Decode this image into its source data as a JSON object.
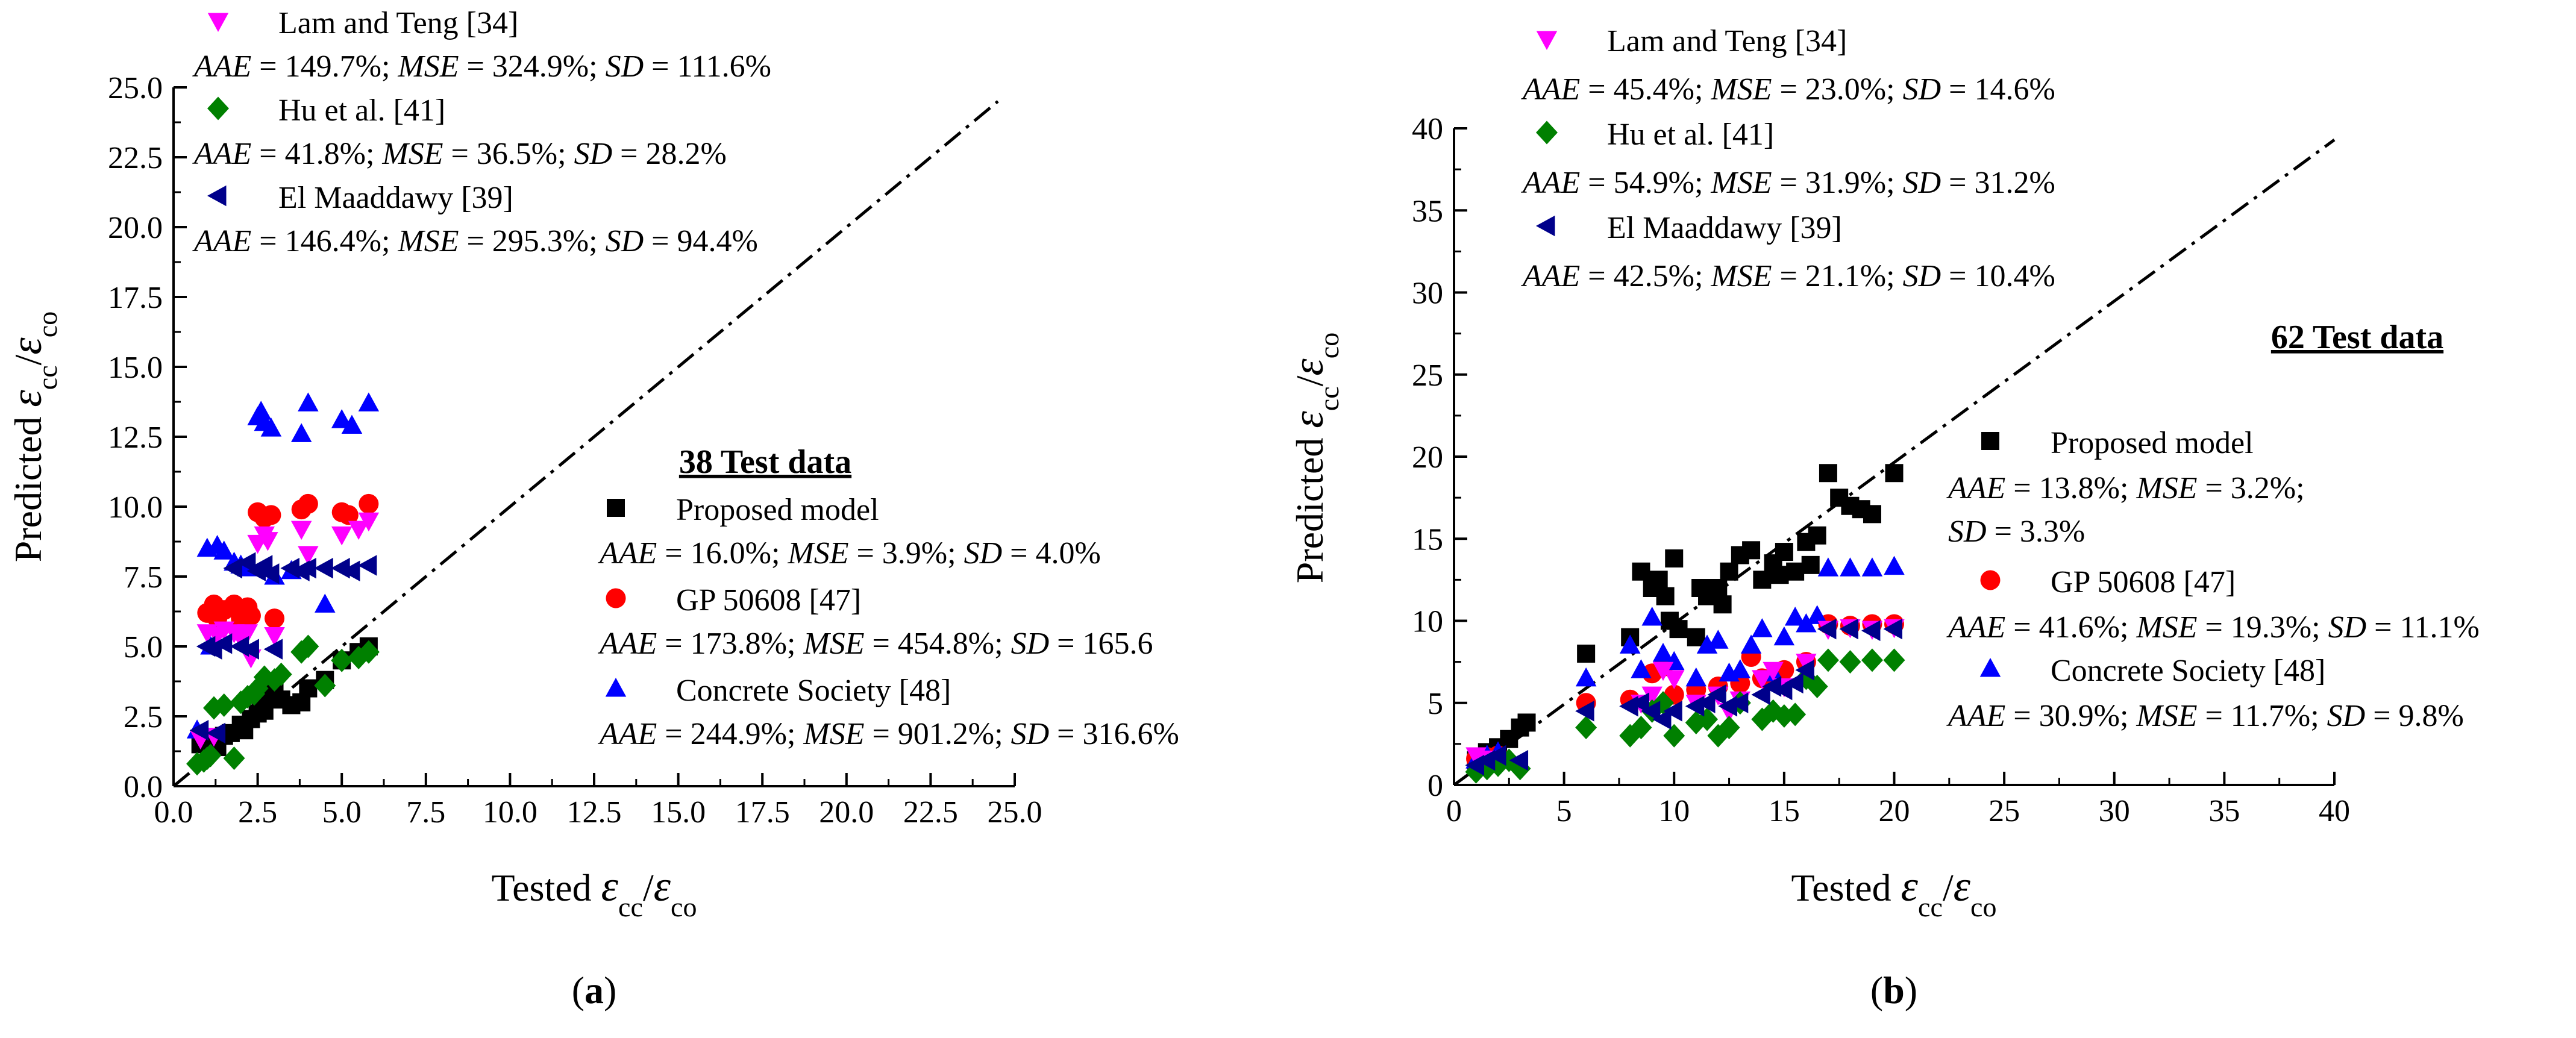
{
  "chart_data": [
    {
      "type": "scatter",
      "panel": "a",
      "caption_letter": "a",
      "xlabel": "Tested εcc/εco",
      "ylabel": "Predicted εcc/εco",
      "xlim": [
        0,
        25
      ],
      "ylim": [
        0,
        25
      ],
      "xticks": [
        "0.0",
        "2.5",
        "5.0",
        "7.5",
        "10.0",
        "12.5",
        "15.0",
        "17.5",
        "20.0",
        "22.5",
        "25.0"
      ],
      "yticks": [
        "0.0",
        "2.5",
        "5.0",
        "7.5",
        "10.0",
        "12.5",
        "15.0",
        "17.5",
        "20.0",
        "22.5",
        "25.0"
      ],
      "reference_line": "y = x",
      "test_count_label": "38 Test data",
      "series": [
        {
          "name": "Proposed model",
          "marker": "square",
          "color": "#000000",
          "stats": {
            "aae": "16.0%",
            "mse": "3.9%",
            "sd": "4.0%"
          },
          "x": [
            0.8,
            1.0,
            1.2,
            1.5,
            1.7,
            2.0,
            2.3,
            2.5,
            2.6,
            2.8,
            3.0,
            3.2,
            3.5,
            3.8,
            4.0,
            4.5,
            5.0,
            5.5,
            5.8,
            1.3,
            2.1,
            2.7
          ],
          "y": [
            1.5,
            1.7,
            1.6,
            1.8,
            1.9,
            2.2,
            2.4,
            2.6,
            3.0,
            3.3,
            3.6,
            3.1,
            2.9,
            3.0,
            3.5,
            3.8,
            4.5,
            4.8,
            5.0,
            1.4,
            2.0,
            2.7
          ]
        },
        {
          "name": "GP 50608 [47]",
          "marker": "circle",
          "color": "#ff0000",
          "stats": {
            "aae": "173.8%",
            "mse": "454.8%",
            "sd": "165.6"
          },
          "x": [
            1.0,
            1.2,
            1.5,
            1.8,
            2.0,
            2.2,
            2.5,
            2.7,
            2.9,
            3.0,
            3.8,
            4.0,
            5.0,
            5.2,
            5.8,
            1.3,
            2.3
          ],
          "y": [
            6.2,
            6.5,
            6.3,
            6.5,
            6.0,
            6.4,
            9.8,
            9.6,
            9.7,
            6.0,
            9.9,
            10.1,
            9.8,
            9.7,
            10.1,
            6.0,
            6.1
          ]
        },
        {
          "name": "Concrete Society [48]",
          "marker": "triangle-up",
          "color": "#0000ff",
          "stats": {
            "aae": "244.9%",
            "mse": "901.2%",
            "sd": "316.6%"
          },
          "x": [
            0.7,
            1.0,
            1.3,
            1.5,
            1.8,
            2.0,
            2.2,
            2.5,
            2.7,
            2.9,
            3.0,
            3.5,
            3.8,
            4.0,
            4.5,
            5.0,
            5.3,
            5.8,
            1.1,
            2.6
          ],
          "y": [
            2.0,
            8.5,
            8.6,
            8.4,
            8.0,
            7.9,
            7.8,
            13.2,
            13.0,
            12.8,
            7.5,
            7.7,
            12.6,
            13.7,
            6.5,
            13.1,
            12.9,
            13.7,
            5.0,
            13.4
          ]
        },
        {
          "name": "Lam and Teng [34]",
          "marker": "triangle-down",
          "color": "#ff00ff",
          "stats": {
            "aae": "149.7%",
            "mse": "324.9%",
            "sd": "111.6%"
          },
          "x": [
            0.8,
            1.0,
            1.3,
            1.5,
            1.8,
            2.0,
            2.3,
            2.5,
            2.7,
            2.8,
            3.0,
            3.8,
            4.0,
            5.0,
            5.5,
            5.8,
            1.2,
            2.2
          ],
          "y": [
            1.7,
            5.5,
            5.4,
            5.6,
            5.5,
            5.3,
            4.6,
            8.7,
            9.0,
            8.8,
            5.4,
            9.2,
            8.3,
            9.0,
            9.2,
            9.5,
            1.8,
            5.5
          ]
        },
        {
          "name": "Hu et al. [41]",
          "marker": "diamond",
          "color": "#008000",
          "stats": {
            "aae": "41.8%",
            "mse": "36.5%",
            "sd": "28.2%"
          },
          "x": [
            0.7,
            0.9,
            1.0,
            1.2,
            1.5,
            1.8,
            2.0,
            2.2,
            2.5,
            2.7,
            3.0,
            3.2,
            3.8,
            4.0,
            4.5,
            5.0,
            5.5,
            5.8,
            1.1,
            2.4
          ],
          "y": [
            0.8,
            0.9,
            1.0,
            2.8,
            2.9,
            1.0,
            3.0,
            3.2,
            3.5,
            3.9,
            3.8,
            4.0,
            4.8,
            5.0,
            3.6,
            4.5,
            4.6,
            4.8,
            1.1,
            3.3
          ]
        },
        {
          "name": "El Maaddawy [39]",
          "marker": "triangle-left",
          "color": "#00008b",
          "stats": {
            "aae": "146.4%",
            "mse": "295.3%",
            "sd": "94.4%"
          },
          "x": [
            0.8,
            1.0,
            1.2,
            1.5,
            1.8,
            2.0,
            2.3,
            2.5,
            2.7,
            2.9,
            3.0,
            3.5,
            3.8,
            4.0,
            4.5,
            5.0,
            5.3,
            5.8,
            1.3,
            2.2
          ],
          "y": [
            2.0,
            5.0,
            4.9,
            5.1,
            7.8,
            5.0,
            4.9,
            7.7,
            7.9,
            7.6,
            4.9,
            7.8,
            7.7,
            7.8,
            7.8,
            7.8,
            7.7,
            7.9,
            1.9,
            8.0
          ]
        }
      ]
    },
    {
      "type": "scatter",
      "panel": "b",
      "caption_letter": "b",
      "xlabel": "Tested εcc/εco",
      "ylabel": "Predicted εcc/εco",
      "xlim": [
        0,
        40
      ],
      "ylim": [
        0,
        40
      ],
      "xticks": [
        "0",
        "5",
        "10",
        "15",
        "20",
        "25",
        "30",
        "35",
        "40"
      ],
      "yticks": [
        "0",
        "5",
        "10",
        "15",
        "20",
        "25",
        "30",
        "35",
        "40"
      ],
      "reference_line": "y = x",
      "test_count_label": "62 Test data",
      "series": [
        {
          "name": "Proposed model",
          "marker": "square",
          "color": "#000000",
          "stats": {
            "aae": "13.8%",
            "mse": "3.2%",
            "sd": "3.3%"
          },
          "x": [
            1.0,
            1.5,
            2.0,
            2.5,
            3.0,
            3.3,
            6.0,
            8.0,
            8.5,
            9.0,
            9.3,
            9.6,
            10.0,
            10.2,
            11.0,
            11.5,
            12.0,
            12.5,
            13.0,
            13.5,
            14.0,
            14.5,
            15.0,
            15.5,
            16.0,
            16.5,
            17.0,
            17.5,
            18.0,
            18.5,
            19.0,
            20.0,
            9.8,
            12.2,
            14.8,
            16.2,
            11.2
          ],
          "y": [
            1.5,
            2.0,
            2.3,
            2.8,
            3.5,
            3.8,
            8.0,
            9.0,
            13.0,
            12.0,
            12.5,
            11.5,
            13.8,
            9.5,
            9.0,
            11.5,
            12.0,
            13.0,
            14.0,
            14.3,
            12.5,
            13.5,
            14.2,
            13.0,
            14.8,
            15.2,
            19.0,
            17.5,
            17.0,
            16.8,
            16.5,
            19.0,
            10.0,
            11.0,
            12.8,
            13.4,
            12.0
          ]
        },
        {
          "name": "GP 50608 [47]",
          "marker": "circle",
          "color": "#ff0000",
          "stats": {
            "aae": "41.6%",
            "mse": "19.3%",
            "sd": "11.1%"
          },
          "x": [
            1.0,
            1.5,
            2.0,
            6.0,
            8.0,
            9.0,
            9.5,
            10.0,
            11.0,
            12.0,
            13.0,
            13.5,
            14.0,
            15.0,
            16.0,
            17.0,
            18.0,
            19.0,
            20.0
          ],
          "y": [
            1.6,
            1.7,
            1.8,
            5.0,
            5.2,
            6.8,
            7.2,
            5.5,
            5.8,
            6.0,
            6.2,
            7.8,
            6.5,
            7.0,
            7.5,
            9.8,
            9.7,
            9.8,
            9.8
          ]
        },
        {
          "name": "Concrete Society [48]",
          "marker": "triangle-up",
          "color": "#0000ff",
          "stats": {
            "aae": "30.9%",
            "mse": "11.7%",
            "sd": "9.8%"
          },
          "x": [
            1.0,
            1.5,
            2.0,
            6.0,
            8.0,
            8.5,
            9.0,
            9.5,
            10.0,
            11.0,
            11.5,
            12.0,
            12.5,
            13.0,
            13.5,
            14.0,
            14.5,
            15.0,
            15.5,
            16.0,
            16.5,
            17.0,
            18.0,
            19.0,
            20.0
          ],
          "y": [
            1.5,
            1.8,
            2.0,
            6.5,
            8.5,
            7.0,
            10.2,
            8.0,
            7.5,
            6.5,
            8.5,
            8.8,
            6.8,
            7.0,
            8.5,
            9.5,
            6.8,
            9.0,
            10.2,
            9.8,
            10.3,
            13.2,
            13.2,
            13.2,
            13.3
          ]
        },
        {
          "name": "Lam and Teng [34]",
          "marker": "triangle-down",
          "color": "#ff00ff",
          "stats": {
            "aae": "45.4%",
            "mse": "23.0%",
            "sd": "14.6%"
          },
          "x": [
            1.0,
            1.5,
            2.0,
            8.5,
            9.0,
            9.5,
            10.0,
            11.0,
            12.0,
            12.5,
            13.0,
            14.0,
            14.5,
            15.0,
            16.0,
            17.0,
            18.0,
            19.0,
            20.0
          ],
          "y": [
            1.8,
            1.6,
            1.5,
            5.0,
            5.5,
            7.0,
            6.5,
            5.0,
            5.5,
            4.5,
            5.2,
            6.5,
            7.0,
            6.0,
            7.5,
            9.5,
            9.6,
            9.5,
            9.6
          ]
        },
        {
          "name": "Hu et al. [41]",
          "marker": "diamond",
          "color": "#008000",
          "stats": {
            "aae": "54.9%",
            "mse": "31.9%",
            "sd": "31.2%"
          },
          "x": [
            1.0,
            1.5,
            2.0,
            2.5,
            3.0,
            6.0,
            8.0,
            8.5,
            9.0,
            9.5,
            10.0,
            11.0,
            11.5,
            12.0,
            12.5,
            13.0,
            14.0,
            14.5,
            15.0,
            15.5,
            16.0,
            16.5,
            17.0,
            18.0,
            19.0,
            20.0
          ],
          "y": [
            0.8,
            1.0,
            1.2,
            1.5,
            1.0,
            3.5,
            3.0,
            3.5,
            4.5,
            5.0,
            3.0,
            3.8,
            4.0,
            3.0,
            3.5,
            5.0,
            4.0,
            4.5,
            4.2,
            4.3,
            6.5,
            6.0,
            7.6,
            7.5,
            7.6,
            7.6
          ]
        },
        {
          "name": "El Maaddawy [39]",
          "marker": "triangle-left",
          "color": "#00008b",
          "stats": {
            "aae": "42.5%",
            "mse": "21.1%",
            "sd": "10.4%"
          },
          "x": [
            1.0,
            1.5,
            2.0,
            3.0,
            6.0,
            8.0,
            8.5,
            9.0,
            9.5,
            10.0,
            11.0,
            11.5,
            12.0,
            12.5,
            13.0,
            14.0,
            14.5,
            15.0,
            15.5,
            16.0,
            17.0,
            18.0,
            19.0,
            20.0
          ],
          "y": [
            1.2,
            1.5,
            1.8,
            1.5,
            4.5,
            4.8,
            5.0,
            4.5,
            4.0,
            4.5,
            4.8,
            5.0,
            5.5,
            4.8,
            5.0,
            5.5,
            6.0,
            5.8,
            6.2,
            7.0,
            9.5,
            9.5,
            9.4,
            9.5
          ]
        }
      ]
    }
  ]
}
